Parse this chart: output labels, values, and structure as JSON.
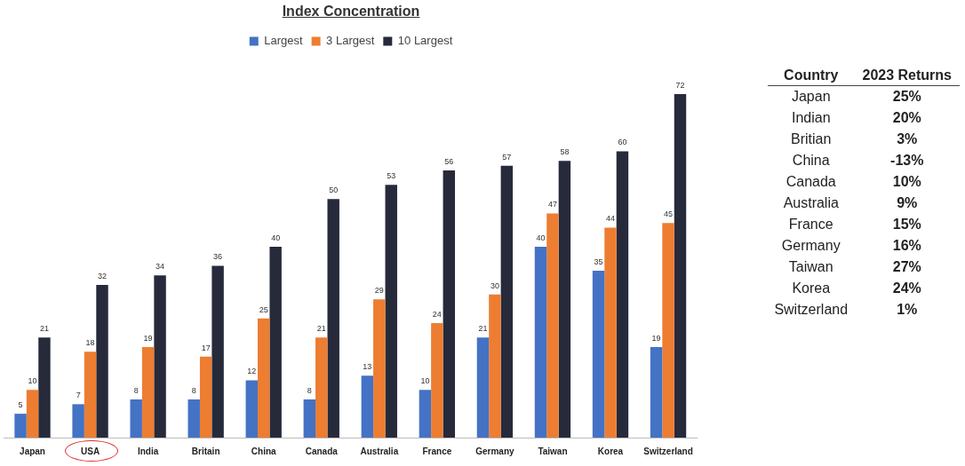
{
  "chart_data": [
    {
      "type": "bar",
      "title": "Index Concentration",
      "categories": [
        "Japan",
        "USA",
        "India",
        "Britain",
        "China",
        "Canada",
        "Australia",
        "France",
        "Germany",
        "Taiwan",
        "Korea",
        "Switzerland"
      ],
      "series": [
        {
          "name": "Largest",
          "color": "#4472c4",
          "values": [
            5,
            7,
            8,
            8,
            12,
            8,
            13,
            10,
            21,
            40,
            35,
            19
          ]
        },
        {
          "name": "3 Largest",
          "color": "#ed7d31",
          "values": [
            10,
            18,
            19,
            17,
            25,
            21,
            29,
            24,
            30,
            47,
            44,
            45
          ]
        },
        {
          "name": "10 Largest",
          "color": "#262a3b",
          "values": [
            21,
            32,
            34,
            36,
            40,
            50,
            53,
            56,
            57,
            58,
            60,
            72
          ]
        }
      ],
      "data_labels": true,
      "legend": "top",
      "grid": false,
      "tick_labels": "x"
    },
    {
      "type": "other",
      "annotations": [
        "Country",
        "2023 Returns"
      ],
      "categories": [
        "Japan",
        "Indian",
        "Britian",
        "China",
        "Canada",
        "Australia",
        "France",
        "Germany",
        "Taiwan",
        "Korea",
        "Switzerland"
      ],
      "value_labels": [
        "25%",
        "20%",
        "3%",
        "-13%",
        "10%",
        "9%",
        "15%",
        "16%",
        "27%",
        "24%",
        "1%"
      ]
    }
  ]
}
